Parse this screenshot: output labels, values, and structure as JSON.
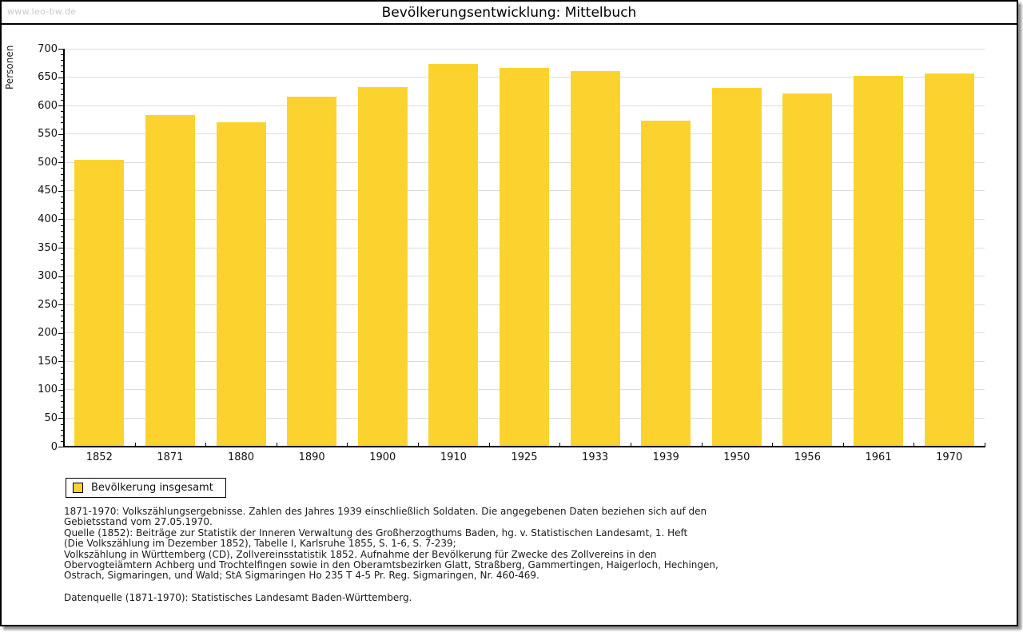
{
  "page": {
    "watermark": "www.leo-bw.de",
    "title": "Bevölkerungsentwicklung: Mittelbuch"
  },
  "chart_data": {
    "type": "bar",
    "title": "Bevölkerungsentwicklung: Mittelbuch",
    "xlabel": "",
    "ylabel": "Personen",
    "categories": [
      "1852",
      "1871",
      "1880",
      "1890",
      "1900",
      "1910",
      "1925",
      "1933",
      "1939",
      "1950",
      "1956",
      "1961",
      "1970"
    ],
    "values": [
      505,
      584,
      570,
      616,
      632,
      673,
      666,
      660,
      574,
      631,
      621,
      652,
      657
    ],
    "ylim": [
      0,
      700
    ],
    "ytick_step": 50,
    "yminor_step": 10,
    "grid": "horizontal",
    "legend_position": "bottom-left",
    "bar_color": "#FCD32E",
    "grid_color": "#dcdcdc",
    "axis_color": "#000000",
    "legend": {
      "label": "Bevölkerung insgesamt",
      "swatch_color": "#FCD32E"
    }
  },
  "footer": {
    "lines": [
      "1871-1970: Volkszählungsergebnisse. Zahlen des Jahres 1939 einschließlich Soldaten. Die angegebenen Daten beziehen sich auf den",
      "Gebietsstand vom 27.05.1970.",
      "Quelle (1852): Beiträge zur Statistik der Inneren Verwaltung des Großherzogthums Baden, hg. v. Statistischen Landesamt, 1. Heft",
      "(Die Volkszählung im Dezember 1852), Tabelle I, Karlsruhe 1855, S. 1-6, S. 7-239;",
      "Volkszählung in Württemberg (CD), Zollvereinsstatistik 1852. Aufnahme der Bevölkerung für Zwecke des Zollvereins in den",
      "Obervogteiämtern Achberg und Trochtelfingen sowie in den Oberamtsbezirken Glatt, Straßberg, Gammertingen, Haigerloch, Hechingen,",
      "Ostrach, Sigmaringen, und Wald; StA Sigmaringen Ho 235 T 4-5 Pr. Reg. Sigmaringen, Nr. 460-469."
    ],
    "datasource": "Datenquelle (1871-1970): Statistisches Landesamt Baden-Württemberg."
  }
}
